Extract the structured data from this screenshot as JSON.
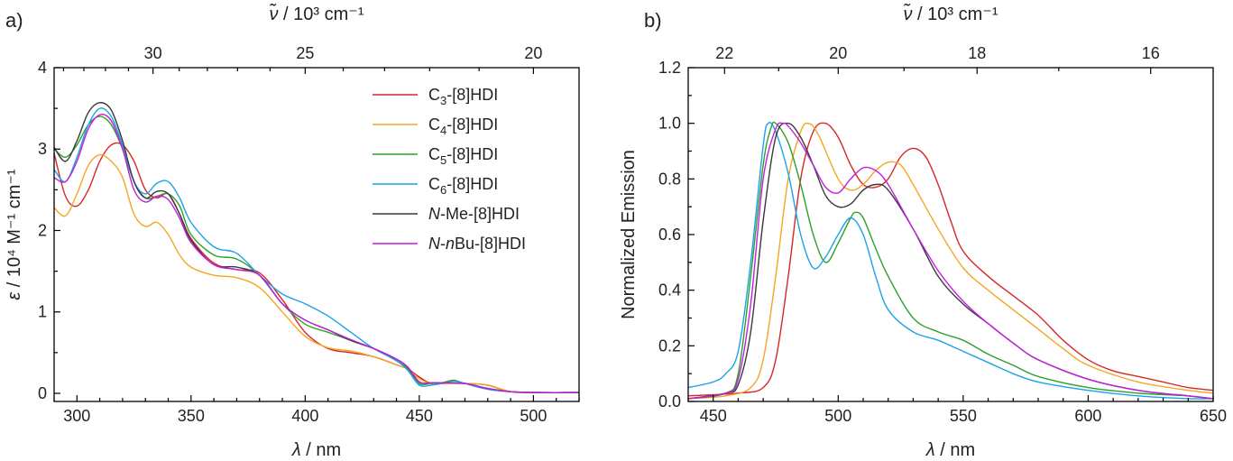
{
  "chart_data": [
    {
      "panel_label": "a)",
      "type": "line",
      "xlabel_symbol": "λ",
      "xlabel_unit": " / nm",
      "ylabel_symbol": "ε",
      "ylabel_unit": " / 10⁴ M⁻¹ cm⁻¹",
      "top_label_symbol": "ν̃",
      "top_label_unit": " / 10³ cm⁻¹",
      "xlim": [
        290,
        520
      ],
      "ylim": [
        -0.1,
        4
      ],
      "xticks": [
        300,
        350,
        400,
        450,
        500
      ],
      "yticks": [
        0,
        1,
        2,
        3,
        4
      ],
      "top_ticks": [
        30,
        25,
        20
      ],
      "legend": "top-right",
      "series": [
        {
          "name": "C3-[8]HDI",
          "legend_main": "C",
          "legend_sub": "3",
          "legend_rest": "-[8]HDI",
          "color": "#d62728",
          "x": [
            290,
            295,
            300,
            305,
            310,
            315,
            320,
            325,
            330,
            335,
            340,
            345,
            350,
            360,
            370,
            380,
            390,
            400,
            410,
            420,
            430,
            440,
            445,
            450,
            455,
            460,
            470,
            480,
            490,
            500,
            520
          ],
          "y": [
            2.95,
            2.42,
            2.3,
            2.5,
            2.85,
            3.05,
            3.05,
            2.85,
            2.5,
            2.4,
            2.45,
            2.2,
            1.9,
            1.6,
            1.52,
            1.48,
            1.15,
            0.75,
            0.55,
            0.5,
            0.45,
            0.35,
            0.3,
            0.2,
            0.12,
            0.12,
            0.12,
            0.1,
            0.02,
            0.01,
            0.01
          ]
        },
        {
          "name": "C4-[8]HDI",
          "legend_main": "C",
          "legend_sub": "4",
          "legend_rest": "-[8]HDI",
          "color": "#f5a623",
          "x": [
            290,
            295,
            300,
            305,
            310,
            315,
            320,
            325,
            330,
            335,
            340,
            345,
            350,
            360,
            370,
            380,
            390,
            400,
            410,
            420,
            430,
            440,
            445,
            450,
            455,
            460,
            470,
            480,
            490,
            500,
            520
          ],
          "y": [
            2.28,
            2.18,
            2.45,
            2.8,
            2.93,
            2.85,
            2.65,
            2.2,
            2.05,
            2.1,
            1.95,
            1.7,
            1.55,
            1.45,
            1.42,
            1.3,
            1.0,
            0.7,
            0.56,
            0.52,
            0.45,
            0.35,
            0.3,
            0.18,
            0.12,
            0.12,
            0.12,
            0.1,
            0.02,
            0.01,
            0.01
          ]
        },
        {
          "name": "C5-[8]HDI",
          "legend_main": "C",
          "legend_sub": "5",
          "legend_rest": "-[8]HDI",
          "color": "#2ca02c",
          "x": [
            290,
            295,
            300,
            305,
            310,
            315,
            320,
            325,
            330,
            335,
            340,
            345,
            350,
            360,
            370,
            380,
            390,
            400,
            410,
            420,
            430,
            440,
            445,
            450,
            455,
            460,
            465,
            470,
            480,
            490,
            500,
            520
          ],
          "y": [
            3.0,
            2.9,
            3.05,
            3.3,
            3.4,
            3.3,
            3.0,
            2.6,
            2.4,
            2.42,
            2.45,
            2.3,
            1.95,
            1.7,
            1.65,
            1.45,
            1.1,
            0.85,
            0.75,
            0.65,
            0.55,
            0.4,
            0.3,
            0.12,
            0.12,
            0.13,
            0.16,
            0.12,
            0.06,
            0.02,
            0.01,
            0.01
          ]
        },
        {
          "name": "C6-[8]HDI",
          "legend_main": "C",
          "legend_sub": "6",
          "legend_rest": "-[8]HDI",
          "color": "#1aa3e8",
          "x": [
            290,
            295,
            300,
            305,
            310,
            315,
            320,
            325,
            330,
            335,
            340,
            345,
            350,
            360,
            370,
            380,
            390,
            400,
            410,
            420,
            430,
            440,
            445,
            450,
            455,
            460,
            465,
            470,
            480,
            490,
            500,
            520
          ],
          "y": [
            2.75,
            2.6,
            2.9,
            3.3,
            3.5,
            3.4,
            3.05,
            2.6,
            2.45,
            2.58,
            2.6,
            2.4,
            2.1,
            1.8,
            1.72,
            1.45,
            1.22,
            1.1,
            0.95,
            0.75,
            0.55,
            0.4,
            0.28,
            0.1,
            0.1,
            0.12,
            0.15,
            0.12,
            0.05,
            0.02,
            0.01,
            0.01
          ]
        },
        {
          "name": "N-Me-[8]HDI",
          "legend_main": "N",
          "legend_sub": "",
          "legend_rest": "-Me-[8]HDI",
          "color": "#3a3a3a",
          "x": [
            290,
            295,
            300,
            305,
            310,
            315,
            320,
            325,
            330,
            335,
            340,
            345,
            350,
            360,
            370,
            380,
            390,
            400,
            410,
            420,
            430,
            440,
            445,
            450,
            455,
            460,
            470,
            480,
            490,
            500,
            520
          ],
          "y": [
            3.02,
            2.85,
            3.1,
            3.45,
            3.57,
            3.48,
            3.1,
            2.6,
            2.4,
            2.48,
            2.45,
            2.2,
            1.88,
            1.58,
            1.55,
            1.45,
            1.1,
            0.9,
            0.78,
            0.65,
            0.55,
            0.42,
            0.32,
            0.14,
            0.13,
            0.13,
            0.12,
            0.06,
            0.02,
            0.01,
            0.01
          ]
        },
        {
          "name": "N-nBu-[8]HDI",
          "legend_main": "N",
          "legend_sub": "",
          "legend_rest": "-nBu-[8]HDI",
          "color": "#c41ee0",
          "x": [
            290,
            295,
            300,
            305,
            310,
            315,
            320,
            325,
            330,
            335,
            340,
            345,
            350,
            360,
            370,
            380,
            390,
            400,
            410,
            420,
            430,
            440,
            445,
            450,
            455,
            460,
            470,
            480,
            490,
            500,
            520
          ],
          "y": [
            2.65,
            2.6,
            2.85,
            3.25,
            3.42,
            3.35,
            3.0,
            2.5,
            2.35,
            2.42,
            2.38,
            2.15,
            1.85,
            1.58,
            1.52,
            1.45,
            1.1,
            0.9,
            0.78,
            0.66,
            0.55,
            0.42,
            0.32,
            0.14,
            0.13,
            0.13,
            0.12,
            0.06,
            0.02,
            0.01,
            0.01
          ]
        }
      ]
    },
    {
      "panel_label": "b)",
      "type": "line",
      "xlabel_symbol": "λ",
      "xlabel_unit": " / nm",
      "ylabel": "Normalized Emission",
      "top_label_symbol": "ν̃",
      "top_label_unit": " / 10³ cm⁻¹",
      "xlim": [
        440,
        650
      ],
      "ylim": [
        0,
        1.2
      ],
      "xticks": [
        450,
        500,
        550,
        600,
        650
      ],
      "yticks": [
        0.0,
        0.2,
        0.4,
        0.6,
        0.8,
        1.0,
        1.2
      ],
      "top_ticks": [
        22,
        20,
        18,
        16
      ],
      "series": [
        {
          "name": "C3-[8]HDI",
          "color": "#d62728",
          "x": [
            440,
            460,
            470,
            475,
            480,
            485,
            490,
            495,
            500,
            505,
            510,
            515,
            520,
            525,
            530,
            535,
            540,
            545,
            550,
            560,
            570,
            580,
            590,
            600,
            610,
            620,
            630,
            640,
            650
          ],
          "y": [
            0.02,
            0.03,
            0.05,
            0.15,
            0.45,
            0.8,
            0.97,
            1.0,
            0.95,
            0.85,
            0.78,
            0.77,
            0.8,
            0.88,
            0.91,
            0.88,
            0.78,
            0.65,
            0.54,
            0.45,
            0.38,
            0.31,
            0.22,
            0.15,
            0.11,
            0.09,
            0.07,
            0.05,
            0.04
          ]
        },
        {
          "name": "C4-[8]HDI",
          "color": "#f5a623",
          "x": [
            440,
            455,
            465,
            470,
            475,
            480,
            485,
            488,
            492,
            500,
            505,
            510,
            515,
            520,
            525,
            530,
            540,
            550,
            560,
            570,
            580,
            590,
            600,
            620,
            640,
            650
          ],
          "y": [
            0.01,
            0.02,
            0.05,
            0.15,
            0.45,
            0.8,
            0.97,
            1.0,
            0.96,
            0.8,
            0.76,
            0.78,
            0.83,
            0.86,
            0.85,
            0.78,
            0.62,
            0.48,
            0.4,
            0.33,
            0.26,
            0.19,
            0.13,
            0.07,
            0.04,
            0.03
          ]
        },
        {
          "name": "C5-[8]HDI",
          "color": "#2ca02c",
          "x": [
            440,
            455,
            460,
            465,
            470,
            473,
            475,
            480,
            485,
            490,
            495,
            500,
            505,
            507,
            510,
            515,
            520,
            530,
            540,
            550,
            560,
            570,
            580,
            600,
            620,
            640,
            650
          ],
          "y": [
            0.01,
            0.03,
            0.1,
            0.45,
            0.85,
            0.98,
            1.0,
            0.93,
            0.78,
            0.6,
            0.5,
            0.57,
            0.66,
            0.68,
            0.66,
            0.55,
            0.45,
            0.3,
            0.25,
            0.22,
            0.17,
            0.13,
            0.09,
            0.05,
            0.03,
            0.02,
            0.01
          ]
        },
        {
          "name": "C6-[8]HDI",
          "color": "#1aa3e8",
          "x": [
            440,
            450,
            455,
            460,
            465,
            470,
            472,
            475,
            480,
            485,
            490,
            495,
            500,
            505,
            510,
            515,
            520,
            530,
            540,
            550,
            560,
            570,
            580,
            600,
            620,
            640,
            650
          ],
          "y": [
            0.05,
            0.07,
            0.1,
            0.18,
            0.5,
            0.92,
            1.0,
            0.97,
            0.82,
            0.6,
            0.48,
            0.52,
            0.6,
            0.66,
            0.6,
            0.45,
            0.33,
            0.25,
            0.22,
            0.18,
            0.14,
            0.1,
            0.07,
            0.04,
            0.02,
            0.01,
            0.01
          ]
        },
        {
          "name": "N-Me-[8]HDI",
          "color": "#3a3a3a",
          "x": [
            440,
            455,
            460,
            465,
            470,
            475,
            480,
            485,
            490,
            495,
            500,
            505,
            510,
            515,
            520,
            530,
            540,
            550,
            560,
            570,
            580,
            600,
            620,
            640,
            650
          ],
          "y": [
            0.01,
            0.03,
            0.06,
            0.25,
            0.65,
            0.95,
            1.0,
            0.95,
            0.85,
            0.74,
            0.7,
            0.71,
            0.76,
            0.78,
            0.76,
            0.62,
            0.45,
            0.35,
            0.28,
            0.21,
            0.15,
            0.08,
            0.04,
            0.02,
            0.01
          ]
        },
        {
          "name": "N-nBu-[8]HDI",
          "color": "#c41ee0",
          "x": [
            440,
            455,
            460,
            465,
            470,
            475,
            478,
            480,
            485,
            490,
            495,
            500,
            505,
            510,
            515,
            520,
            530,
            540,
            550,
            560,
            570,
            580,
            600,
            620,
            640,
            650
          ],
          "y": [
            0.01,
            0.03,
            0.08,
            0.35,
            0.8,
            0.98,
            1.0,
            0.99,
            0.93,
            0.85,
            0.77,
            0.75,
            0.8,
            0.84,
            0.83,
            0.78,
            0.62,
            0.47,
            0.36,
            0.28,
            0.21,
            0.15,
            0.08,
            0.04,
            0.02,
            0.01
          ]
        }
      ]
    }
  ]
}
